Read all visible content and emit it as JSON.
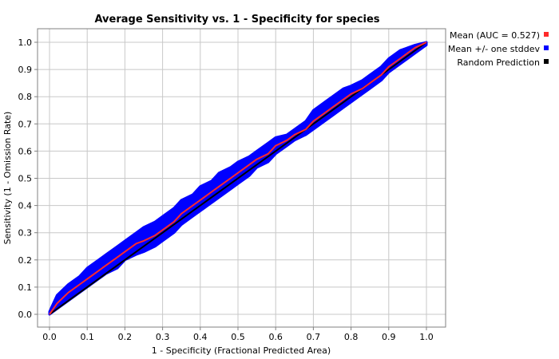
{
  "colors": {
    "mean": "#ff2a2a",
    "stddev": "#0000ff",
    "random": "#000000",
    "grid": "#c8c8c8",
    "background": "#ffffff"
  },
  "chart_data": {
    "type": "line",
    "title": "Average Sensitivity vs. 1 - Specificity for species",
    "xlabel": "1 - Specificity (Fractional Predicted Area)",
    "ylabel": "Sensitivity (1 - Omission Rate)",
    "xlim": [
      0,
      1
    ],
    "ylim": [
      0,
      1
    ],
    "x_ticks": [
      "0.0",
      "0.1",
      "0.2",
      "0.3",
      "0.4",
      "0.5",
      "0.6",
      "0.7",
      "0.8",
      "0.9",
      "1.0"
    ],
    "y_ticks": [
      "0.0",
      "0.1",
      "0.2",
      "0.3",
      "0.4",
      "0.5",
      "0.6",
      "0.7",
      "0.8",
      "0.9",
      "1.0"
    ],
    "grid": true,
    "legend_position": "outside-right",
    "series": [
      {
        "name": "Mean (AUC = 0.527)",
        "color_key": "mean",
        "x": [
          0,
          0.02,
          0.05,
          0.08,
          0.1,
          0.13,
          0.15,
          0.18,
          0.2,
          0.23,
          0.25,
          0.28,
          0.3,
          0.33,
          0.35,
          0.38,
          0.4,
          0.43,
          0.45,
          0.48,
          0.5,
          0.53,
          0.55,
          0.58,
          0.6,
          0.63,
          0.65,
          0.68,
          0.7,
          0.73,
          0.75,
          0.78,
          0.8,
          0.83,
          0.85,
          0.88,
          0.9,
          0.93,
          0.95,
          0.97,
          1.0
        ],
        "y": [
          0,
          0.04,
          0.08,
          0.11,
          0.13,
          0.16,
          0.18,
          0.21,
          0.23,
          0.26,
          0.27,
          0.29,
          0.31,
          0.34,
          0.37,
          0.4,
          0.42,
          0.45,
          0.47,
          0.5,
          0.52,
          0.55,
          0.57,
          0.59,
          0.62,
          0.64,
          0.66,
          0.68,
          0.71,
          0.74,
          0.76,
          0.79,
          0.81,
          0.83,
          0.85,
          0.88,
          0.91,
          0.94,
          0.96,
          0.98,
          1.0
        ]
      },
      {
        "name": "Mean +/- one stddev",
        "color_key": "stddev",
        "x": [
          0,
          0.02,
          0.05,
          0.08,
          0.1,
          0.13,
          0.15,
          0.18,
          0.2,
          0.23,
          0.25,
          0.28,
          0.3,
          0.33,
          0.35,
          0.38,
          0.4,
          0.43,
          0.45,
          0.48,
          0.5,
          0.53,
          0.55,
          0.58,
          0.6,
          0.63,
          0.65,
          0.68,
          0.7,
          0.73,
          0.75,
          0.78,
          0.8,
          0.83,
          0.85,
          0.88,
          0.9,
          0.93,
          0.95,
          0.97,
          1.0
        ],
        "upper": [
          0.01,
          0.07,
          0.11,
          0.14,
          0.17,
          0.2,
          0.22,
          0.25,
          0.27,
          0.3,
          0.32,
          0.34,
          0.36,
          0.39,
          0.42,
          0.44,
          0.47,
          0.49,
          0.52,
          0.54,
          0.56,
          0.58,
          0.6,
          0.63,
          0.65,
          0.66,
          0.68,
          0.71,
          0.75,
          0.78,
          0.8,
          0.83,
          0.84,
          0.86,
          0.88,
          0.91,
          0.94,
          0.97,
          0.98,
          0.99,
          1.0
        ],
        "lower": [
          0,
          0.02,
          0.05,
          0.08,
          0.1,
          0.13,
          0.15,
          0.17,
          0.2,
          0.22,
          0.23,
          0.25,
          0.27,
          0.3,
          0.33,
          0.36,
          0.38,
          0.41,
          0.43,
          0.46,
          0.48,
          0.51,
          0.54,
          0.56,
          0.59,
          0.62,
          0.64,
          0.66,
          0.68,
          0.71,
          0.73,
          0.76,
          0.78,
          0.81,
          0.83,
          0.86,
          0.89,
          0.92,
          0.94,
          0.96,
          0.99
        ]
      },
      {
        "name": "Random Prediction",
        "color_key": "random",
        "x": [
          0,
          1
        ],
        "y": [
          0,
          1
        ]
      }
    ]
  }
}
